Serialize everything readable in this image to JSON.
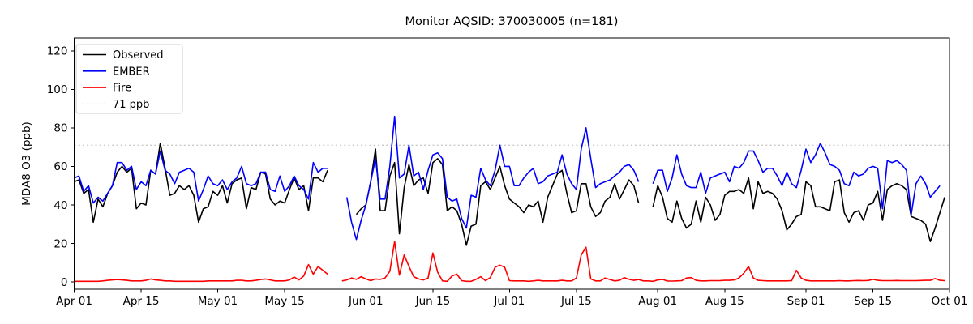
{
  "chart_data": {
    "type": "line",
    "title": "Monitor AQSID: 370030005 (n=181)",
    "xlabel": "",
    "ylabel": "MDA8 O3 (ppb)",
    "ylim": [
      -3.8,
      126.7
    ],
    "yticks": [
      0,
      20,
      40,
      60,
      80,
      100,
      120
    ],
    "n_days": 183,
    "x_range": "Apr 01 - Oct 01",
    "grid": false,
    "legend_position": "upper left",
    "xticks": [
      {
        "label": "Apr 01",
        "day": 0
      },
      {
        "label": "Apr 15",
        "day": 14
      },
      {
        "label": "May 01",
        "day": 30
      },
      {
        "label": "May 15",
        "day": 44
      },
      {
        "label": "Jun 01",
        "day": 61
      },
      {
        "label": "Jun 15",
        "day": 75
      },
      {
        "label": "Jul 01",
        "day": 91
      },
      {
        "label": "Jul 15",
        "day": 105
      },
      {
        "label": "Aug 01",
        "day": 122
      },
      {
        "label": "Aug 15",
        "day": 136
      },
      {
        "label": "Sep 01",
        "day": 153
      },
      {
        "label": "Sep 15",
        "day": 167
      },
      {
        "label": "Oct 01",
        "day": 183
      }
    ],
    "threshold_line": {
      "label": "71 ppb",
      "value": 71,
      "color": "#c9c9c9",
      "dash": "dotted"
    },
    "legend": [
      {
        "label": "Observed",
        "color": "#000000",
        "dash": "solid"
      },
      {
        "label": "EMBER",
        "color": "#0000ff",
        "dash": "solid"
      },
      {
        "label": "Fire",
        "color": "#ff0000",
        "dash": "solid"
      },
      {
        "label": "71 ppb",
        "color": "#c9c9c9",
        "dash": "dotted"
      }
    ],
    "series": [
      {
        "name": "Observed",
        "color": "#000000",
        "values": [
          52,
          53,
          46,
          48,
          31,
          43,
          39,
          46,
          50,
          57,
          60,
          57,
          59,
          38,
          41,
          40,
          58,
          56,
          72,
          59,
          45,
          46,
          50,
          48,
          50,
          45,
          31,
          38,
          39,
          47,
          45,
          50,
          41,
          51,
          53,
          54,
          38,
          49,
          48,
          57,
          56,
          43,
          40,
          42,
          41,
          48,
          54,
          48,
          50,
          37,
          54,
          54,
          52,
          58,
          null,
          null,
          null,
          null,
          null,
          35,
          38,
          40,
          52,
          69,
          37,
          37,
          55,
          62,
          25,
          49,
          61,
          50,
          53,
          54,
          46,
          62,
          64,
          61,
          37,
          39,
          37,
          30,
          19,
          29,
          30,
          50,
          52,
          48,
          54,
          60,
          50,
          43,
          41,
          39,
          36,
          40,
          39,
          42,
          31,
          44,
          50,
          56,
          58,
          46,
          36,
          37,
          51,
          51,
          39,
          34,
          36,
          42,
          44,
          51,
          43,
          48,
          53,
          50,
          41,
          null,
          null,
          39,
          50,
          44,
          33,
          31,
          42,
          33,
          28,
          30,
          42,
          31,
          44,
          40,
          32,
          35,
          45,
          47,
          47,
          48,
          46,
          54,
          38,
          52,
          46,
          47,
          46,
          43,
          37,
          27,
          30,
          34,
          35,
          52,
          50,
          39,
          39,
          38,
          37,
          52,
          53,
          36,
          31,
          36,
          37,
          32,
          40,
          41,
          47,
          32,
          48,
          50,
          51,
          50,
          48,
          34,
          33,
          32,
          30,
          21,
          28,
          36,
          44
        ]
      },
      {
        "name": "EMBER",
        "color": "#0000ff",
        "values": [
          54,
          55,
          47,
          50,
          41,
          44,
          42,
          46,
          50,
          62,
          62,
          58,
          60,
          48,
          52,
          50,
          58,
          56,
          68,
          58,
          56,
          51,
          57,
          58,
          59,
          57,
          42,
          48,
          55,
          51,
          50,
          53,
          48,
          52,
          54,
          60,
          51,
          50,
          51,
          57,
          57,
          48,
          47,
          55,
          47,
          50,
          55,
          50,
          48,
          43,
          62,
          57,
          59,
          59,
          null,
          null,
          null,
          44,
          31,
          22,
          32,
          40,
          52,
          64,
          43,
          43,
          60,
          86,
          54,
          56,
          71,
          55,
          57,
          48,
          58,
          66,
          67,
          64,
          44,
          42,
          43,
          33,
          28,
          45,
          44,
          59,
          53,
          50,
          58,
          71,
          60,
          60,
          50,
          50,
          54,
          57,
          59,
          51,
          52,
          55,
          56,
          57,
          66,
          56,
          51,
          48,
          69,
          80,
          64,
          49,
          51,
          52,
          53,
          55,
          57,
          60,
          61,
          58,
          52,
          null,
          null,
          51,
          58,
          58,
          47,
          54,
          66,
          56,
          50,
          49,
          49,
          57,
          46,
          54,
          55,
          56,
          57,
          52,
          60,
          59,
          62,
          68,
          68,
          63,
          57,
          59,
          59,
          55,
          50,
          57,
          51,
          49,
          58,
          69,
          62,
          66,
          72,
          67,
          61,
          60,
          58,
          51,
          50,
          57,
          55,
          56,
          59,
          60,
          59,
          38,
          63,
          62,
          63,
          61,
          58,
          35,
          51,
          55,
          51,
          44,
          47,
          50,
          null
        ]
      },
      {
        "name": "Fire",
        "color": "#ff0000",
        "values": [
          0.3,
          0.3,
          0.3,
          0.3,
          0.3,
          0.3,
          0.5,
          0.8,
          1,
          1.2,
          1,
          0.8,
          0.5,
          0.5,
          0.5,
          0.8,
          1.5,
          1,
          0.8,
          0.5,
          0.5,
          0.3,
          0.3,
          0.3,
          0.3,
          0.3,
          0.3,
          0.3,
          0.5,
          0.5,
          0.5,
          0.5,
          0.5,
          0.5,
          0.8,
          0.8,
          0.5,
          0.5,
          0.8,
          1.2,
          1.5,
          1,
          0.5,
          0.5,
          0.5,
          1,
          2.5,
          1,
          3,
          9,
          4,
          8,
          6,
          4,
          null,
          null,
          0.5,
          1,
          2,
          1.3,
          2.7,
          1.5,
          0.6,
          1.5,
          1.3,
          2,
          5.5,
          21,
          3.5,
          14,
          8,
          2.7,
          1.5,
          1,
          2,
          15,
          5,
          0.5,
          0.3,
          3,
          4,
          0.6,
          0.3,
          0.3,
          1.3,
          2.7,
          0.6,
          2.2,
          7.6,
          8.7,
          7.6,
          0.6,
          0.5,
          0.5,
          0.5,
          0.3,
          0.5,
          0.8,
          0.5,
          0.5,
          0.5,
          0.5,
          0.8,
          0.5,
          0.5,
          2,
          14,
          18,
          1.5,
          0.5,
          0.5,
          2,
          1.2,
          0.5,
          0.8,
          2.2,
          1.3,
          0.8,
          1.2,
          0.5,
          0.5,
          0.3,
          1,
          1.3,
          0.4,
          0.4,
          0.5,
          0.6,
          2,
          2.2,
          0.8,
          0.5,
          0.5,
          0.6,
          0.6,
          0.6,
          0.8,
          0.8,
          1,
          2,
          4.5,
          8,
          2,
          0.8,
          0.6,
          0.5,
          0.5,
          0.5,
          0.5,
          0.5,
          0.6,
          6,
          2,
          0.8,
          0.5,
          0.5,
          0.5,
          0.5,
          0.5,
          0.5,
          0.6,
          0.5,
          0.5,
          0.6,
          0.7,
          0.6,
          0.7,
          1.3,
          0.8,
          0.6,
          0.6,
          0.6,
          0.7,
          0.6,
          0.6,
          0.6,
          0.6,
          0.7,
          0.8,
          0.8,
          1.7,
          0.8,
          0.6
        ]
      }
    ]
  }
}
